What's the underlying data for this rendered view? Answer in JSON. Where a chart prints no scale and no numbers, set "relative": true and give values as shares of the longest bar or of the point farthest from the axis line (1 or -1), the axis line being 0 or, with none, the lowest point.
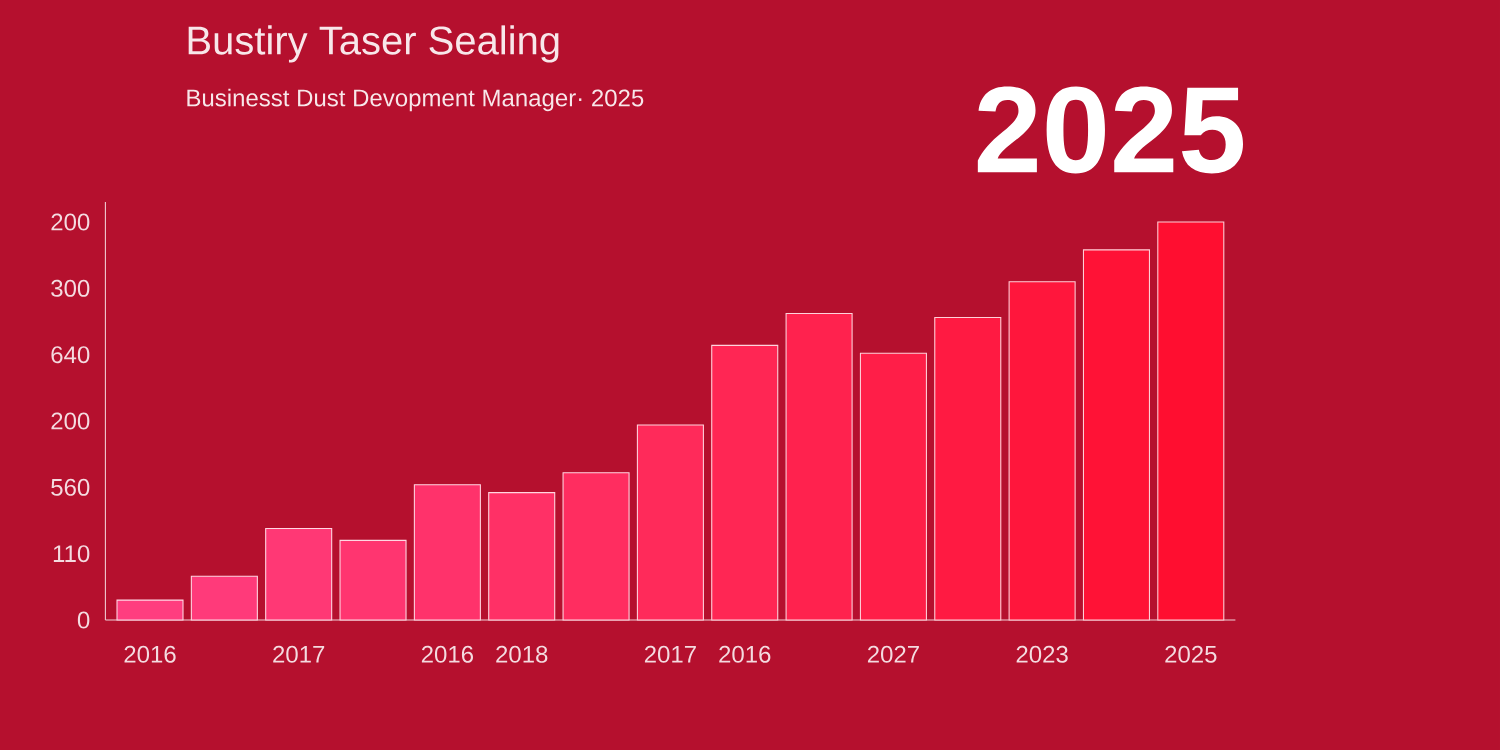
{
  "chart_data": {
    "type": "bar",
    "title": "Bustiry Taser Sealing",
    "subtitle": "Businesst Dust Devopment Manager· 2025",
    "annotations": [
      "2025",
      "0",
      "110",
      "560",
      "200",
      "640",
      "300",
      "200"
    ],
    "categories": [
      "2016",
      null,
      "2017",
      null,
      "2016",
      "2018",
      null,
      "2017",
      "2016",
      null,
      "2027",
      null,
      "2023",
      null,
      "2025"
    ],
    "values": [
      0.05,
      0.11,
      0.23,
      0.2,
      0.34,
      0.32,
      0.37,
      0.49,
      0.69,
      0.77,
      0.67,
      0.76,
      0.85,
      0.93,
      1
    ],
    "colors": [
      "#ff3d7f",
      "#ff3a7a",
      "#ff3875",
      "#ff3570",
      "#ff326b",
      "#ff3066",
      "#ff2d60",
      "#ff2a5a",
      "#ff2654",
      "#ff224e",
      "#ff1e48",
      "#ff1a42",
      "#ff163c",
      "#ff1236",
      "#ff0e30"
    ],
    "relative": true
  }
}
